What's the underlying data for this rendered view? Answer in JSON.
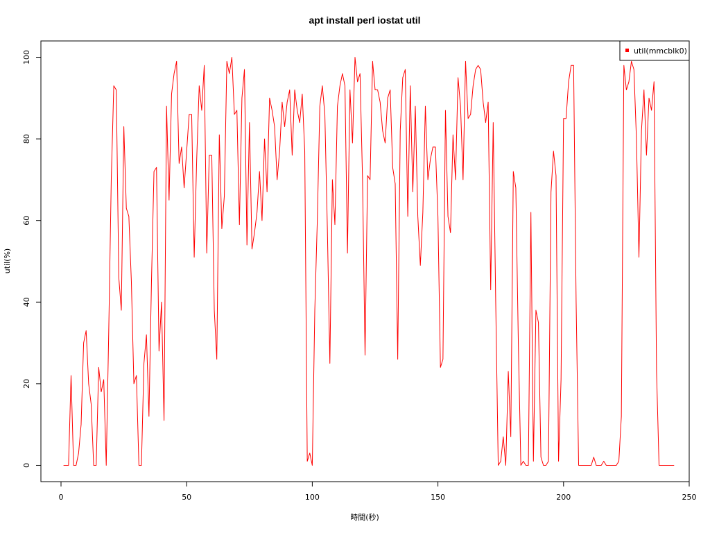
{
  "chart_data": {
    "type": "line",
    "title": "apt install perl iostat util",
    "xlabel": "時間(秒)",
    "ylabel": "util(%)",
    "xlim": [
      -8,
      250
    ],
    "ylim": [
      -4,
      104
    ],
    "xticks": [
      0,
      50,
      100,
      150,
      200,
      250
    ],
    "yticks": [
      0,
      20,
      40,
      60,
      80,
      100
    ],
    "grid": false,
    "legend_position": "top-right",
    "series": [
      {
        "name": "util(mmcblk0)",
        "color": "#ff0000",
        "x_start": 1,
        "values": [
          0,
          0,
          0,
          22,
          0,
          0,
          3,
          10,
          30,
          33,
          20,
          15,
          0,
          0,
          24,
          18,
          21,
          0,
          33,
          70,
          93,
          92,
          46,
          38,
          83,
          63,
          61,
          45,
          20,
          22,
          0,
          0,
          25,
          32,
          12,
          45,
          72,
          73,
          28,
          40,
          11,
          88,
          65,
          91,
          96,
          99,
          74,
          78,
          68,
          77,
          86,
          86,
          51,
          75,
          93,
          87,
          98,
          52,
          76,
          76,
          38,
          26,
          81,
          58,
          66,
          99,
          96,
          100,
          86,
          87,
          59,
          90,
          97,
          54,
          84,
          53,
          57,
          62,
          72,
          60,
          80,
          67,
          90,
          87,
          83,
          70,
          77,
          89,
          83,
          89,
          92,
          76,
          92,
          87,
          84,
          91,
          77,
          1,
          3,
          0,
          38,
          60,
          88,
          93,
          86,
          58,
          25,
          70,
          59,
          88,
          93,
          96,
          93,
          52,
          92,
          79,
          100,
          94,
          96,
          70,
          27,
          71,
          70,
          99,
          92,
          92,
          89,
          82,
          79,
          90,
          92,
          73,
          69,
          26,
          82,
          95,
          97,
          61,
          93,
          67,
          88,
          61,
          49,
          62,
          88,
          70,
          75,
          78,
          78,
          61,
          24,
          26,
          87,
          61,
          57,
          81,
          70,
          95,
          88,
          70,
          99,
          85,
          86,
          93,
          97,
          98,
          97,
          89,
          84,
          89,
          43,
          84,
          40,
          0,
          1,
          7,
          0,
          23,
          7,
          72,
          68,
          30,
          0,
          1,
          0,
          0,
          62,
          1,
          38,
          35,
          2,
          0,
          0,
          1,
          67,
          77,
          71,
          1,
          21,
          85,
          85,
          94,
          98,
          98,
          40,
          0,
          0,
          0,
          0,
          0,
          0,
          2,
          0,
          0,
          0,
          1,
          0,
          0,
          0,
          0,
          0,
          1,
          12,
          98,
          92,
          94,
          99,
          97,
          80,
          51,
          82,
          92,
          76,
          90,
          87,
          94,
          23,
          0,
          0,
          0,
          0,
          0,
          0,
          0
        ]
      }
    ]
  }
}
